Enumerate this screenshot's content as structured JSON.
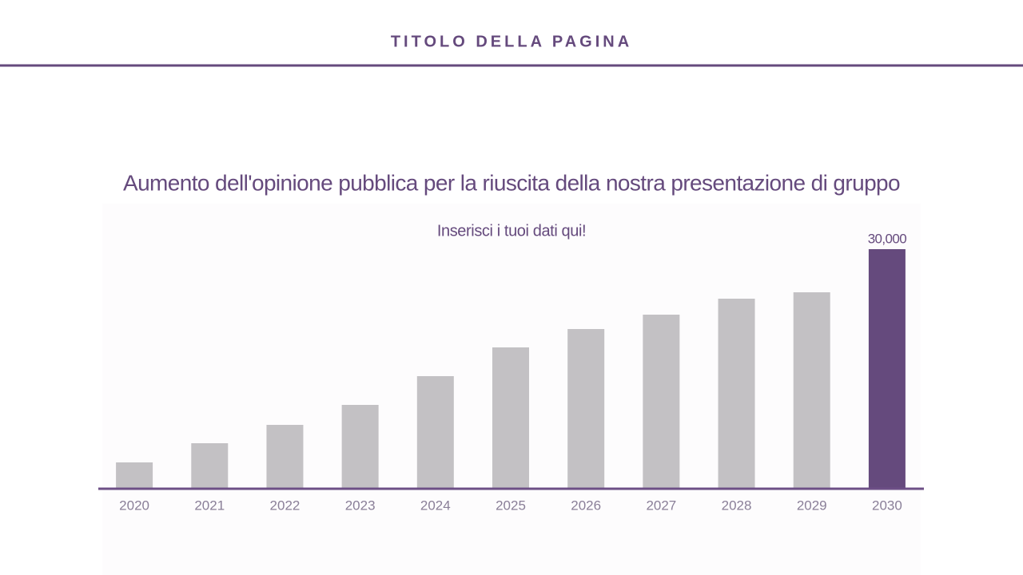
{
  "page_title": "TITOLO DELLA PAGINA",
  "chart_data": {
    "type": "bar",
    "title": "Aumento dell'opinione pubblica per la riuscita della nostra presentazione di gruppo",
    "subtitle": "Inserisci i tuoi dati qui!",
    "categories": [
      "2020",
      "2021",
      "2022",
      "2023",
      "2024",
      "2025",
      "2026",
      "2027",
      "2028",
      "2029",
      "2030"
    ],
    "values": [
      3300,
      5700,
      8000,
      10500,
      14100,
      17700,
      20000,
      21800,
      23800,
      24600,
      30000
    ],
    "value_labels": [
      null,
      null,
      null,
      null,
      null,
      null,
      null,
      null,
      null,
      null,
      "30,000"
    ],
    "colors": [
      "#c3c1c4",
      "#c3c1c4",
      "#c3c1c4",
      "#c3c1c4",
      "#c3c1c4",
      "#c3c1c4",
      "#c3c1c4",
      "#c3c1c4",
      "#c3c1c4",
      "#c3c1c4",
      "#654a7d"
    ],
    "axis_color": "#6d4f86"
  }
}
